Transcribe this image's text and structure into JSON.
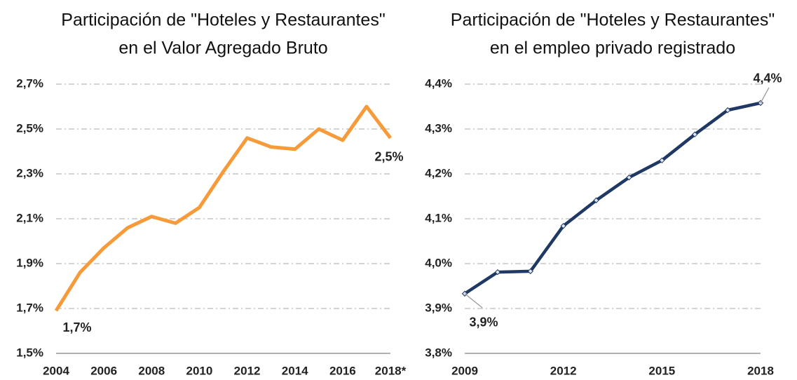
{
  "chart_data": [
    {
      "type": "line",
      "title": [
        "Participación de \"Hoteles y Restaurantes\"",
        "en el Valor Agregado Bruto"
      ],
      "categories": [
        "2004",
        null,
        "2006",
        null,
        "2008",
        null,
        "2010",
        null,
        "2012",
        null,
        "2014",
        null,
        "2016",
        null,
        "2018*"
      ],
      "series": [
        {
          "color": "#f79a3a",
          "values": [
            1.69,
            1.86,
            1.97,
            2.06,
            2.11,
            2.08,
            2.15,
            2.31,
            2.46,
            2.42,
            2.41,
            2.5,
            2.45,
            2.6,
            2.46
          ],
          "value_labels": [
            "1,7%",
            null,
            null,
            null,
            null,
            null,
            null,
            null,
            null,
            null,
            null,
            null,
            null,
            null,
            "2,5%"
          ]
        }
      ],
      "ylim": [
        1.5,
        2.7
      ],
      "yticks": [
        {
          "value": 1.5,
          "label": "1,5%"
        },
        {
          "value": 1.7,
          "label": "1,7%"
        },
        {
          "value": 1.9,
          "label": "1,9%"
        },
        {
          "value": 2.1,
          "label": "2,1%"
        },
        {
          "value": 2.3,
          "label": "2,3%"
        },
        {
          "value": 2.5,
          "label": "2,5%"
        },
        {
          "value": 2.7,
          "label": "2,7%"
        }
      ],
      "grid": true
    },
    {
      "type": "line",
      "title": [
        "Participación de \"Hoteles y Restaurantes\"",
        "en el empleo privado registrado"
      ],
      "x": [
        2009,
        2010,
        2011,
        2012,
        2013,
        2014,
        2015,
        2016,
        2017,
        2018
      ],
      "series": [
        {
          "color": "#1f3864",
          "values": [
            3.933,
            3.981,
            3.983,
            4.084,
            4.141,
            4.192,
            4.23,
            4.288,
            4.342,
            4.358
          ],
          "value_labels": [
            "3,9%",
            null,
            null,
            null,
            null,
            null,
            null,
            null,
            null,
            "4,4%"
          ]
        }
      ],
      "xlim": [
        2009,
        2018
      ],
      "xticks": [
        2009,
        2012,
        2015,
        2018
      ],
      "ylim": [
        3.8,
        4.4
      ],
      "yticks": [
        {
          "value": 3.8,
          "label": "3,8%"
        },
        {
          "value": 3.9,
          "label": "3,9%"
        },
        {
          "value": 4.0,
          "label": "4,0%"
        },
        {
          "value": 4.1,
          "label": "4,1%"
        },
        {
          "value": 4.2,
          "label": "4,2%"
        },
        {
          "value": 4.3,
          "label": "4,3%"
        },
        {
          "value": 4.4,
          "label": "4,4%"
        }
      ],
      "grid": true,
      "markers": true
    }
  ]
}
